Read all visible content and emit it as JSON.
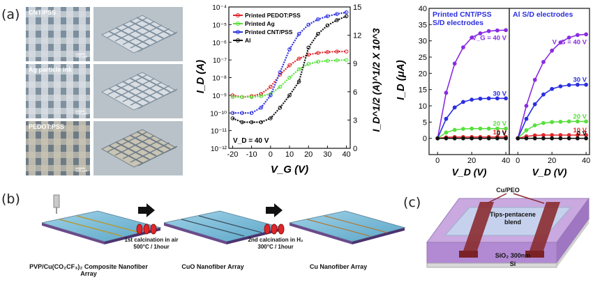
{
  "panels": {
    "a": "(a)",
    "b": "(b)",
    "c": "(c)"
  },
  "micrographs": [
    {
      "label": "CNT/PSS",
      "scale": "100 μm",
      "stripe": "#d7dde2",
      "gap": "#7d8f9e"
    },
    {
      "label": "Ag particle ink",
      "scale": "100 μm",
      "stripe": "#d9dee3",
      "gap": "#7f909e"
    },
    {
      "label": "PEDOT:PSS",
      "scale": "100 μm",
      "stripe": "#c9c4b4",
      "gap": "#6e7b86"
    }
  ],
  "chart_mid": {
    "ylabel_left": "I_D (A)",
    "ylabel_right": "I_D^1/2 (A)^1/2 X 10^3",
    "xlabel": "V_G (V)",
    "annotation": "V_D = 40 V",
    "legend": [
      {
        "name": "Printed PEDOT:PSS",
        "color": "#e0262a"
      },
      {
        "name": "Printed Ag",
        "color": "#57e03c"
      },
      {
        "name": "Printed CNT/PSS",
        "color": "#2a2ee0"
      },
      {
        "name": "Al",
        "color": "#111111"
      }
    ],
    "xticks": [
      "-20",
      "-10",
      "0",
      "10",
      "20",
      "30",
      "40"
    ],
    "yticks_left": [
      "10⁻¹²",
      "10⁻¹¹",
      "10⁻¹⁰",
      "10⁻⁹",
      "10⁻⁸",
      "10⁻⁷",
      "10⁻⁶",
      "10⁻⁵",
      "10⁻⁴"
    ],
    "yticks_right": [
      "0",
      "3",
      "6",
      "9",
      "12",
      "15"
    ]
  },
  "chart_data": [
    {
      "type": "line",
      "x": [
        -20,
        -15,
        -10,
        -5,
        0,
        5,
        10,
        15,
        20,
        25,
        30,
        35,
        40
      ],
      "xlabel": "V_G (V)",
      "ylabel": "I_D (A)",
      "y_scale": "log",
      "ylim": [
        1e-12,
        0.0001
      ],
      "xlim": [
        -22,
        42
      ],
      "series": [
        {
          "name": "Printed PEDOT:PSS",
          "color": "#e0262a",
          "values": [
            1e-09,
            8e-10,
            9e-10,
            1.2e-09,
            3e-09,
            1.5e-08,
            5e-08,
            1.2e-07,
            2e-07,
            2.5e-07,
            2.8e-07,
            3e-07,
            3e-07
          ]
        },
        {
          "name": "Printed Ag",
          "color": "#57e03c",
          "values": [
            8e-10,
            8e-10,
            8e-10,
            9e-10,
            1.2e-09,
            3e-09,
            1e-08,
            3e-08,
            6e-08,
            8e-08,
            9e-08,
            9.5e-08,
            1e-07
          ]
        },
        {
          "name": "Printed CNT/PSS",
          "color": "#2a2ee0",
          "values": [
            1e-10,
            1e-10,
            1e-10,
            2e-10,
            1e-09,
            2e-08,
            4e-07,
            3e-06,
            1e-05,
            2e-05,
            3e-05,
            4e-05,
            5e-05
          ]
        },
        {
          "name": "Al",
          "color": "#111111",
          "values": [
            5e-11,
            3e-11,
            3e-11,
            3e-11,
            5e-11,
            2e-10,
            1e-09,
            6e-09,
            5e-07,
            3e-06,
            9e-06,
            1.8e-05,
            3e-05
          ]
        }
      ]
    },
    {
      "type": "line",
      "title": "Printed CNT/PSS S/D electrodes",
      "x": [
        0,
        5,
        10,
        15,
        20,
        25,
        30,
        35,
        40
      ],
      "xlabel": "V_D (V)",
      "ylabel": "I_D (μA)",
      "ylim": [
        -5,
        40
      ],
      "xlim": [
        -5,
        42
      ],
      "series": [
        {
          "name": "V_G = 40 V",
          "values": [
            0,
            14,
            23,
            28,
            31,
            32.3,
            33,
            33.2,
            33.3
          ]
        },
        {
          "name": "30 V",
          "values": [
            0,
            6,
            9.5,
            11.2,
            11.9,
            12.2,
            12.3,
            12.3,
            12.3
          ]
        },
        {
          "name": "20 V",
          "values": [
            0,
            1.8,
            2.6,
            2.9,
            3.0,
            3.0,
            3.0,
            3.0,
            3.0
          ]
        },
        {
          "name": "10 V",
          "values": [
            0,
            0.3,
            0.4,
            0.4,
            0.4,
            0.4,
            0.4,
            0.4,
            0.4
          ]
        },
        {
          "name": "0 V",
          "values": [
            0,
            0,
            0,
            0,
            0,
            0,
            0,
            0,
            0
          ]
        }
      ]
    },
    {
      "type": "line",
      "title": "Al S/D electrodes",
      "x": [
        0,
        5,
        10,
        15,
        20,
        25,
        30,
        35,
        40
      ],
      "xlabel": "V_D (V)",
      "ylabel": "I_D (μA)",
      "ylim": [
        -5,
        40
      ],
      "xlim": [
        -5,
        42
      ],
      "series": [
        {
          "name": "V_G = 40 V",
          "values": [
            0,
            10,
            18,
            23.5,
            27,
            29.5,
            31,
            31.8,
            32
          ]
        },
        {
          "name": "30 V",
          "values": [
            0,
            6,
            10.5,
            13.5,
            15.2,
            16,
            16.4,
            16.5,
            16.5
          ]
        },
        {
          "name": "20 V",
          "values": [
            0,
            2.5,
            4.0,
            4.7,
            5.0,
            5.1,
            5.2,
            5.2,
            5.2
          ]
        },
        {
          "name": "10 V",
          "values": [
            0,
            0.6,
            0.9,
            1.0,
            1.0,
            1.0,
            1.0,
            1.0,
            1.0
          ]
        },
        {
          "name": "0 V",
          "values": [
            0,
            0,
            0,
            0,
            0,
            0,
            0,
            0,
            0
          ]
        }
      ]
    }
  ],
  "chart_right": {
    "ylabel": "I_D (μA)",
    "xlabel": "V_D (V)",
    "titles": [
      "Printed CNT/PSS S/D electrodes",
      "Al S/D electrodes"
    ],
    "curve_labels": [
      "V_G = 40 V",
      "30 V",
      "20 V",
      "10 V",
      "0 V"
    ],
    "curve_colors": [
      "#8a2be2",
      "#2a2ee0",
      "#57e03c",
      "#e0262a",
      "#111111"
    ],
    "yticks": [
      "0",
      "5",
      "10",
      "15",
      "20",
      "25",
      "30",
      "35",
      "40"
    ],
    "xticks": [
      "0",
      "20",
      "40"
    ]
  },
  "panel_b": {
    "steps": [
      "PVP/Cu(CO₂CF₃)₂ Composite Nanofiber Array",
      "CuO Nanofiber Array",
      "Cu Nanofiber Array"
    ],
    "calc1": [
      "1st calcination in air",
      "500°C / 1hour"
    ],
    "calc2": [
      "2nd calcination in H₂",
      "300°C / 1hour"
    ]
  },
  "panel_c": {
    "top": "Cu/PEO",
    "blend": [
      "Tips-pentacene",
      "blend"
    ],
    "sio2": "SiO₂ 300nm",
    "si": "Si"
  }
}
